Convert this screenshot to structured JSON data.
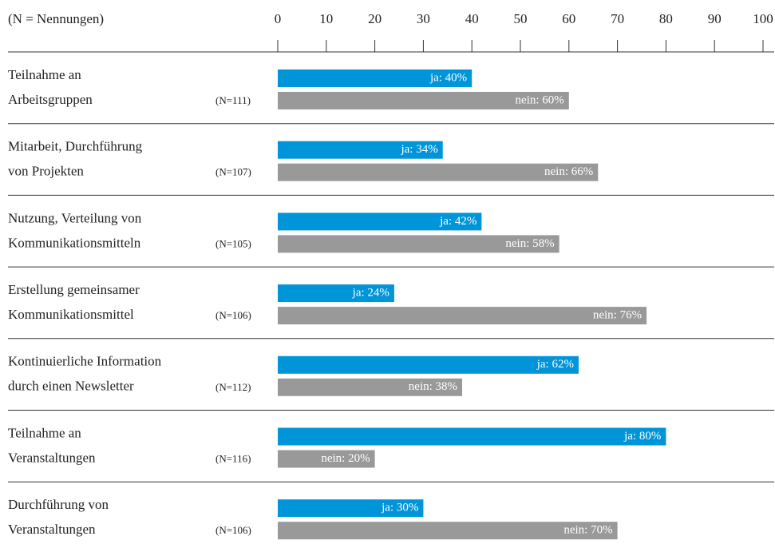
{
  "chart_data": {
    "type": "bar",
    "orientation": "horizontal",
    "header": "(N = Nennungen)",
    "categories": [
      [
        "Teilnahme an",
        "Arbeitsgruppen"
      ],
      [
        "Mitarbeit, Durchführung",
        "von Projekten"
      ],
      [
        "Nutzung, Verteilung von",
        "Kommunikationsmitteln"
      ],
      [
        "Erstellung gemeinsamer",
        "Kommunikationsmittel"
      ],
      [
        "Kontinuierliche Information",
        "durch einen Newsletter"
      ],
      [
        "Teilnahme an",
        "Veranstaltungen"
      ],
      [
        "Durchführung von",
        "Veranstaltungen"
      ]
    ],
    "n_labels": [
      "(N=111)",
      "(N=107)",
      "(N=105)",
      "(N=106)",
      "(N=112)",
      "(N=116)",
      "(N=106)"
    ],
    "series": [
      {
        "name": "ja",
        "color": "#0095d9",
        "values": [
          40,
          34,
          42,
          24,
          62,
          80,
          30
        ],
        "value_labels": [
          "ja: 40%",
          "ja: 34%",
          "ja: 42%",
          "ja: 24%",
          "ja: 62%",
          "ja: 80%",
          "ja: 30%"
        ]
      },
      {
        "name": "nein",
        "color": "#999999",
        "values": [
          60,
          66,
          58,
          76,
          38,
          20,
          70
        ],
        "value_labels": [
          "nein: 60%",
          "nein: 66%",
          "nein: 58%",
          "nein: 76%",
          "nein: 38%",
          "nein: 20%",
          "nein: 70%"
        ]
      }
    ],
    "xlim": [
      0,
      100
    ],
    "xticks": [
      0,
      10,
      20,
      30,
      40,
      50,
      60,
      70,
      80,
      90,
      100
    ]
  }
}
